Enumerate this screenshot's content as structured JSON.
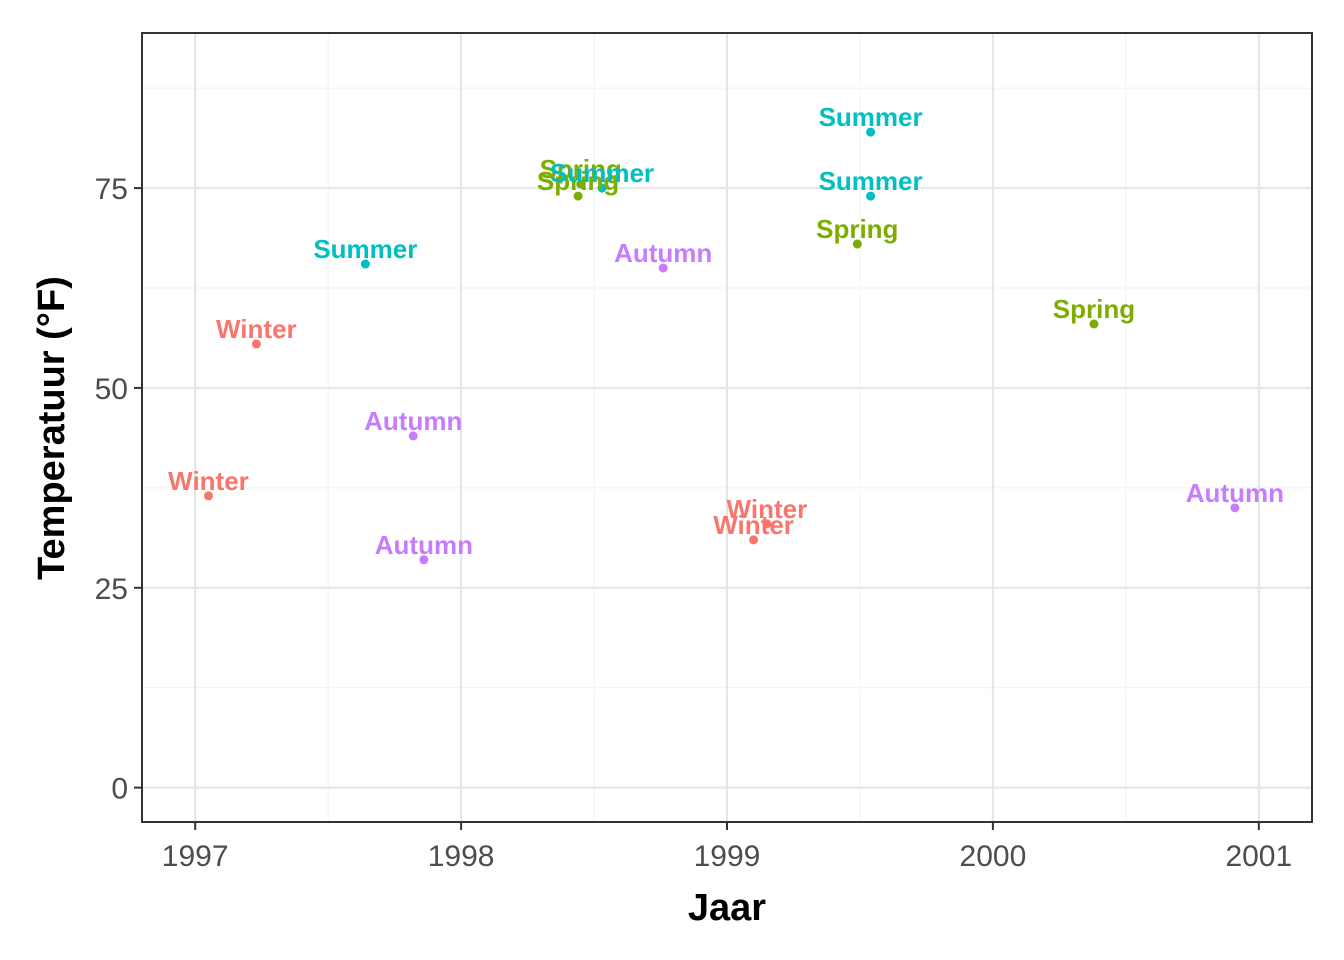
{
  "chart_data": {
    "type": "scatter",
    "title": "",
    "xlabel": "Jaar",
    "ylabel": "Temperatuur (°F)",
    "xlim": [
      1996.8,
      2001.2
    ],
    "ylim": [
      -4.3,
      94.4
    ],
    "x_ticks": [
      1997,
      1998,
      1999,
      2000,
      2001
    ],
    "x_tick_labels": [
      "1997",
      "1998",
      "1999",
      "2000",
      "2001"
    ],
    "y_ticks": [
      0,
      25,
      50,
      75
    ],
    "y_tick_labels": [
      "0",
      "25",
      "50",
      "75"
    ],
    "grid": true,
    "legend": "none",
    "colors": {
      "Winter": "#F8766D",
      "Spring": "#7CAE00",
      "Summer": "#00BFC4",
      "Autumn": "#C77CFF"
    },
    "points": [
      {
        "x": 1997.05,
        "y": 36.5,
        "season": "Winter",
        "label": "Winter"
      },
      {
        "x": 1997.23,
        "y": 55.5,
        "season": "Winter",
        "label": "Winter"
      },
      {
        "x": 1997.64,
        "y": 65.5,
        "season": "Summer",
        "label": "Summer"
      },
      {
        "x": 1997.82,
        "y": 44.0,
        "season": "Autumn",
        "label": "Autumn"
      },
      {
        "x": 1997.86,
        "y": 28.5,
        "season": "Autumn",
        "label": "Autumn"
      },
      {
        "x": 1998.44,
        "y": 74.0,
        "season": "Spring",
        "label": "Spring"
      },
      {
        "x": 1998.45,
        "y": 75.5,
        "season": "Spring",
        "label": "Spring"
      },
      {
        "x": 1998.53,
        "y": 75.0,
        "season": "Summer",
        "label": "Summer"
      },
      {
        "x": 1998.76,
        "y": 65.0,
        "season": "Autumn",
        "label": "Autumn"
      },
      {
        "x": 1999.1,
        "y": 31.0,
        "season": "Winter",
        "label": "Winter"
      },
      {
        "x": 1999.15,
        "y": 33.0,
        "season": "Winter",
        "label": "Winter"
      },
      {
        "x": 1999.49,
        "y": 68.0,
        "season": "Spring",
        "label": "Spring"
      },
      {
        "x": 1999.54,
        "y": 82.0,
        "season": "Summer",
        "label": "Summer"
      },
      {
        "x": 1999.54,
        "y": 74.0,
        "season": "Summer",
        "label": "Summer"
      },
      {
        "x": 2000.38,
        "y": 58.0,
        "season": "Spring",
        "label": "Spring"
      },
      {
        "x": 2000.91,
        "y": 35.0,
        "season": "Autumn",
        "label": "Autumn"
      }
    ]
  }
}
